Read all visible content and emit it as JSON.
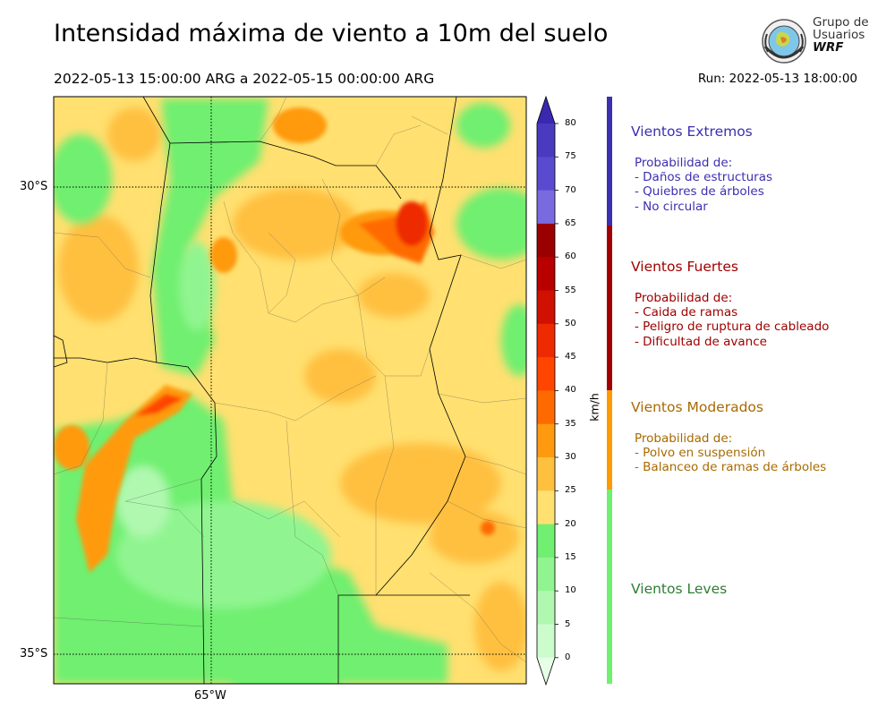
{
  "title": "Intensidad máxima de viento a 10m del suelo",
  "period": "2022-05-13 15:00:00 ARG  a  2022-05-15 00:00:00 ARG",
  "run": "Run: 2022-05-13 18:00:00",
  "logo": {
    "line1": "Grupo de",
    "line2": "Usuarios",
    "line3": "WRF"
  },
  "map": {
    "lat_labels": [
      "30°S",
      "35°S"
    ],
    "lon_labels": [
      "65°W"
    ]
  },
  "colorbar": {
    "unit": "km/h",
    "ticks": [
      "80",
      "75",
      "70",
      "65",
      "60",
      "55",
      "50",
      "45",
      "40",
      "35",
      "30",
      "25",
      "20",
      "15",
      "10",
      "5",
      "0"
    ],
    "colors": [
      "#3a28b0",
      "#4a3ac0",
      "#5a4ad0",
      "#7a6ae0",
      "#9b0000",
      "#b80000",
      "#d01000",
      "#ee2a00",
      "#ff4500",
      "#ff6a00",
      "#ff9a10",
      "#ffc040",
      "#ffe070",
      "#70ef70",
      "#90f590",
      "#b0f8b0",
      "#ccfccc",
      "#e6fee6"
    ]
  },
  "categories": [
    {
      "title": "Vientos Extremos",
      "color": "#3c2fb0",
      "lines": [
        "Probabilidad de:",
        "- Daños de estructuras",
        "- Quiebres de árboles",
        "- No circular"
      ]
    },
    {
      "title": "Vientos Fuertes",
      "color": "#a00000",
      "lines": [
        "Probabilidad de:",
        "- Caida de ramas",
        "- Peligro de ruptura de cableado",
        "- Dificultad de avance"
      ]
    },
    {
      "title": "Vientos Moderados",
      "color": "#a86a00",
      "lines": [
        "Probabilidad de:",
        "- Polvo en suspensión",
        "- Balanceo de ramas de árboles"
      ]
    },
    {
      "title": "Vientos Leves",
      "color": "#2e7d32",
      "lines": []
    }
  ],
  "category_bar_colors": [
    "#3c2fb0",
    "#a00000",
    "#ff9a00",
    "#6ff06f"
  ]
}
